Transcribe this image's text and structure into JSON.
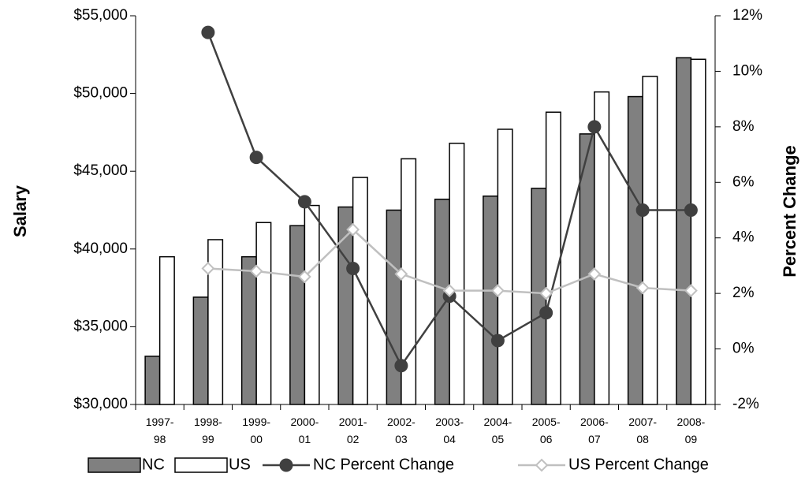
{
  "chart_data": {
    "type": "bar",
    "categories": [
      "1997-98",
      "1998-99",
      "1999-00",
      "2000-01",
      "2001-02",
      "2002-03",
      "2003-04",
      "2004-05",
      "2005-06",
      "2006-07",
      "2007-08",
      "2008-09"
    ],
    "y_label": "Salary",
    "y2_label": "Percent Change",
    "ylim": [
      30000,
      55000
    ],
    "yticks": [
      {
        "value": 30000,
        "label": "$30,000"
      },
      {
        "value": 35000,
        "label": "$35,000"
      },
      {
        "value": 40000,
        "label": "$40,000"
      },
      {
        "value": 45000,
        "label": "$45,000"
      },
      {
        "value": 50000,
        "label": "$50,000"
      },
      {
        "value": 55000,
        "label": "$55,000"
      }
    ],
    "y2lim": [
      -2,
      12
    ],
    "y2ticks": [
      {
        "value": -2,
        "label": "-2%"
      },
      {
        "value": 0,
        "label": "0%"
      },
      {
        "value": 2,
        "label": "2%"
      },
      {
        "value": 4,
        "label": "4%"
      },
      {
        "value": 6,
        "label": "6%"
      },
      {
        "value": 8,
        "label": "8%"
      },
      {
        "value": 10,
        "label": "10%"
      },
      {
        "value": 12,
        "label": "12%"
      }
    ],
    "legend": "bottom",
    "series": [
      {
        "name": "NC",
        "type": "bar",
        "color": "#808080",
        "values": [
          33100,
          36900,
          39500,
          41500,
          42700,
          42500,
          43200,
          43400,
          43900,
          47400,
          49800,
          52300
        ]
      },
      {
        "name": "US",
        "type": "bar",
        "color": "#ffffff",
        "values": [
          39500,
          40600,
          41700,
          42800,
          44600,
          45800,
          46800,
          47700,
          48800,
          50100,
          51100,
          52200
        ]
      },
      {
        "name": "NC Percent Change",
        "type": "line",
        "axis": "y2",
        "color": "#404040",
        "marker": "circle",
        "values": [
          null,
          11.4,
          6.9,
          5.3,
          2.9,
          -0.6,
          1.9,
          0.3,
          1.3,
          8.0,
          5.0,
          5.0
        ]
      },
      {
        "name": "US Percent Change",
        "type": "line",
        "axis": "y2",
        "color": "#c0c0c0",
        "marker": "diamond",
        "values": [
          null,
          2.9,
          2.8,
          2.6,
          4.3,
          2.7,
          2.1,
          2.1,
          2.0,
          2.7,
          2.2,
          2.1
        ]
      }
    ]
  }
}
